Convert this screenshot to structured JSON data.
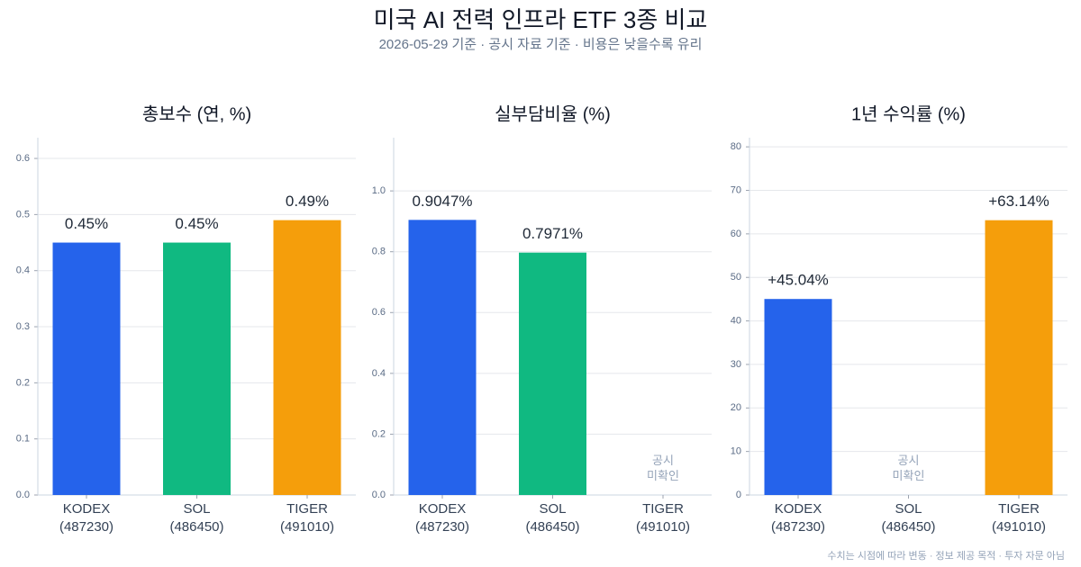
{
  "title": "미국 AI 전력 인프라 ETF 3종 비교",
  "subtitle": "2026-05-29 기준 · 공시 자료 기준 · 비용은 낮을수록 유리",
  "footnote": "수치는 시점에 따라 변동 · 정보 제공 목적 · 투자 자문 아님",
  "chart_data": [
    {
      "type": "bar",
      "title": "총보수 (연, %)",
      "categories": [
        "KODEX\n(487230)",
        "SOL\n(486450)",
        "TIGER\n(491010)"
      ],
      "values": [
        0.45,
        0.45,
        0.49
      ],
      "value_labels": [
        "0.45%",
        "0.45%",
        "0.49%"
      ],
      "colors": [
        "#2563eb",
        "#10b981",
        "#f59e0b"
      ],
      "ylim": [
        0,
        0.637
      ],
      "yticks": [
        {
          "value": 0,
          "label": "0.0"
        },
        0.1,
        0.2,
        0.3,
        0.4,
        0.5,
        0.6
      ],
      "grid": true
    },
    {
      "type": "bar",
      "title": "실부담비율 (%)",
      "categories": [
        "KODEX\n(487230)",
        "SOL\n(486450)",
        "TIGER\n(491010)"
      ],
      "values": [
        0.9047,
        0.7971,
        null
      ],
      "value_labels": [
        "0.9047%",
        "0.7971%",
        null
      ],
      "missing_label": "공시\n미확인",
      "colors": [
        "#2563eb",
        "#10b981",
        "#f59e0b"
      ],
      "ylim": [
        0,
        1.175
      ],
      "yticks": [
        {
          "value": 0,
          "label": "0.0"
        },
        0.2,
        0.4,
        0.6,
        0.8,
        {
          "value": 1,
          "label": "1.0"
        }
      ],
      "grid": true
    },
    {
      "type": "bar",
      "title": "1년 수익률 (%)",
      "categories": [
        "KODEX\n(487230)",
        "SOL\n(486450)",
        "TIGER\n(491010)"
      ],
      "values": [
        45.04,
        null,
        63.14
      ],
      "value_labels": [
        "+45.04%",
        null,
        "+63.14%"
      ],
      "missing_label": "공시\n미확인",
      "colors": [
        "#2563eb",
        "#10b981",
        "#f59e0b"
      ],
      "ylim": [
        0,
        82.1
      ],
      "yticks": [
        0,
        10,
        20,
        30,
        40,
        50,
        60,
        70,
        80
      ],
      "grid": true
    }
  ]
}
